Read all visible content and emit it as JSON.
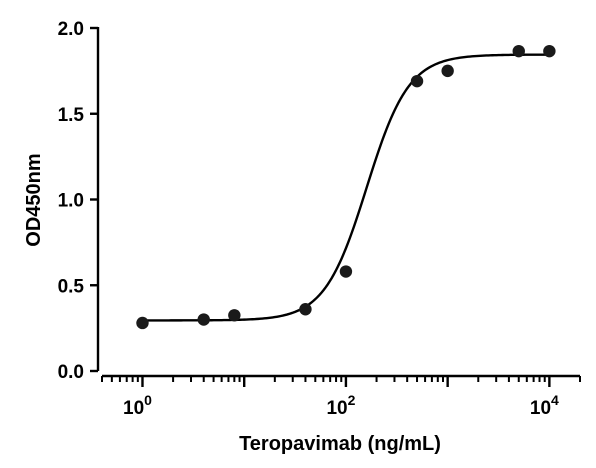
{
  "chart_data": {
    "type": "scatter",
    "title": "",
    "xlabel": "Teropavimab (ng/mL)",
    "ylabel": "OD450nm",
    "xscale": "log",
    "xlim": [
      0.4,
      20000
    ],
    "ylim": [
      0,
      2.0
    ],
    "x_ticks": [
      {
        "value": 1,
        "base": "10",
        "exp": "0"
      },
      {
        "value": 100,
        "base": "10",
        "exp": "2"
      },
      {
        "value": 10000,
        "base": "10",
        "exp": "4"
      }
    ],
    "y_ticks": [
      {
        "value": 0,
        "label": "0.0"
      },
      {
        "value": 0.5,
        "label": "0.5"
      },
      {
        "value": 1.0,
        "label": "1.0"
      },
      {
        "value": 1.5,
        "label": "1.5"
      },
      {
        "value": 2.0,
        "label": "2.0"
      }
    ],
    "series": [
      {
        "x": [
          1,
          4,
          8,
          40,
          100,
          500,
          1000,
          5000,
          10000
        ],
        "y": [
          0.28,
          0.3,
          0.325,
          0.36,
          0.58,
          1.69,
          1.75,
          1.865,
          1.865
        ]
      }
    ],
    "fit": {
      "type": "4PL",
      "bottom": 0.295,
      "top": 1.845,
      "ec50": 160,
      "hill": 2.1
    },
    "grid": false,
    "legend": "none",
    "colors": {
      "points": "#1a1a1a",
      "curve": "#000000",
      "axes": "#000000"
    }
  }
}
